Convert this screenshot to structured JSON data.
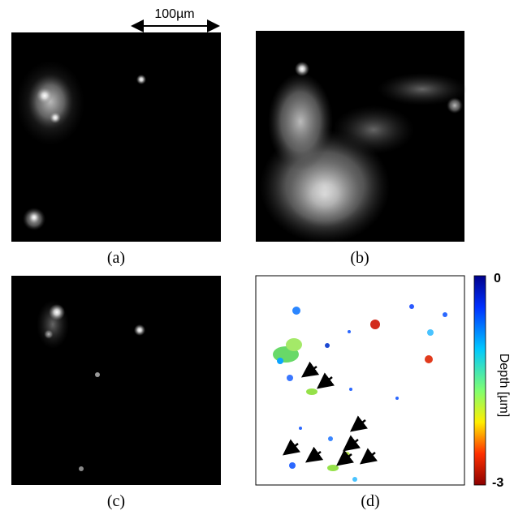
{
  "scale_bar": "100µm",
  "panels": [
    {
      "label": "(a)"
    },
    {
      "label": "(b)"
    },
    {
      "label": "(c)"
    },
    {
      "label": "(d)"
    }
  ],
  "colorbar": {
    "title": "Depth [µm]",
    "top_label": "0",
    "bottom_label": "-3"
  }
}
